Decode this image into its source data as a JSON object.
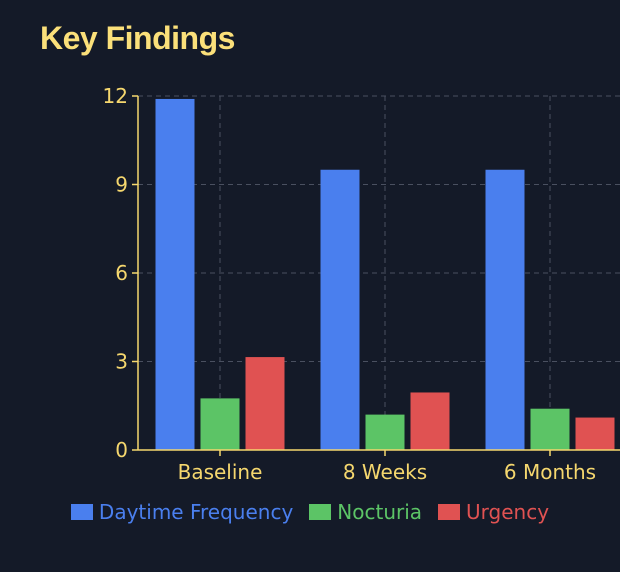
{
  "title": "Key Findings",
  "chart_data": {
    "type": "bar",
    "categories": [
      "Baseline",
      "8 Weeks",
      "6 Months"
    ],
    "series": [
      {
        "name": "Daytime Frequency",
        "values": [
          11.9,
          9.5,
          9.5
        ],
        "color": "#4a7fee"
      },
      {
        "name": "Nocturia",
        "values": [
          1.75,
          1.2,
          1.4
        ],
        "color": "#5cc466"
      },
      {
        "name": "Urgency",
        "values": [
          3.15,
          1.95,
          1.1
        ],
        "color": "#e05252"
      }
    ],
    "ylim": [
      0,
      12
    ],
    "yticks": [
      0,
      3,
      6,
      9,
      12
    ],
    "grid": true,
    "legend_position": "bottom",
    "colors": {
      "background": "#141a28",
      "axis": "#f5d76e",
      "grid": "#4a5060"
    }
  }
}
